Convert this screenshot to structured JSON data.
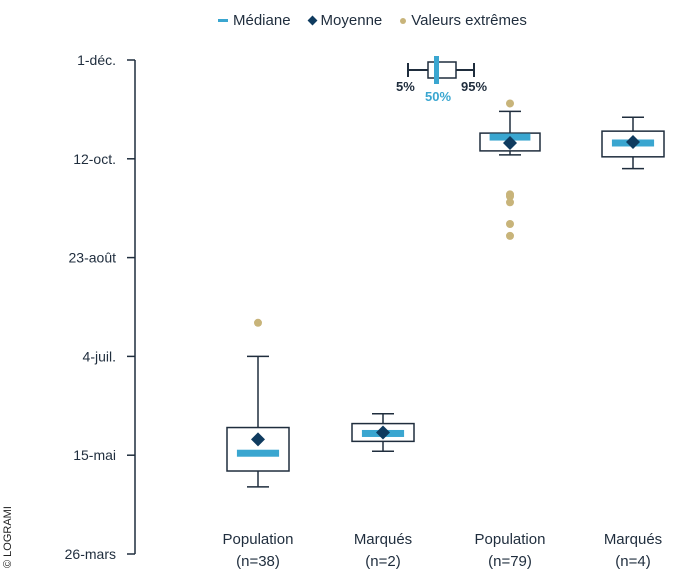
{
  "legend": {
    "median": "Médiane",
    "mean": "Moyenne",
    "outlier": "Valeurs extrêmes"
  },
  "credit": "© LOGRAMI",
  "key": {
    "p5": "5%",
    "p50": "50%",
    "p95": "95%"
  },
  "colors": {
    "median": "#3aa6d0",
    "mean": "#0f3b5f",
    "outlier": "#c8b47a",
    "box_stroke": "#1f2d3d",
    "axis": "#1f2d3d"
  },
  "chart_data": {
    "type": "box",
    "y_axis_unit": "day of year",
    "ylim": [
      85,
      335
    ],
    "yticks": [
      {
        "value": 85,
        "label": "26-mars"
      },
      {
        "value": 135,
        "label": "15-mai"
      },
      {
        "value": 185,
        "label": "4-juil."
      },
      {
        "value": 235,
        "label": "23-août"
      },
      {
        "value": 285,
        "label": "12-oct."
      },
      {
        "value": 335,
        "label": "1-déc."
      }
    ],
    "categories": [
      {
        "name": "Population",
        "n": "(n=38)"
      },
      {
        "name": "Marqués",
        "n": "(n=2)"
      },
      {
        "name": "Population",
        "n": "(n=79)"
      },
      {
        "name": "Marqués",
        "n": "(n=4)"
      }
    ],
    "boxes": [
      {
        "p5": 119,
        "q1": 127,
        "median": 136,
        "q3": 149,
        "p95": 185,
        "mean": 143,
        "outliers": [
          202
        ]
      },
      {
        "p5": 137,
        "q1": 142,
        "median": 146,
        "q3": 151,
        "p95": 156,
        "mean": 146.5,
        "outliers": []
      },
      {
        "p5": 287,
        "q1": 289,
        "median": 296,
        "q3": 298,
        "p95": 309,
        "mean": 293,
        "outliers": [
          313,
          267,
          266,
          263,
          252,
          246
        ]
      },
      {
        "p5": 280,
        "q1": 286,
        "median": 293,
        "q3": 299,
        "p95": 306,
        "mean": 293.5,
        "outliers": []
      }
    ]
  }
}
